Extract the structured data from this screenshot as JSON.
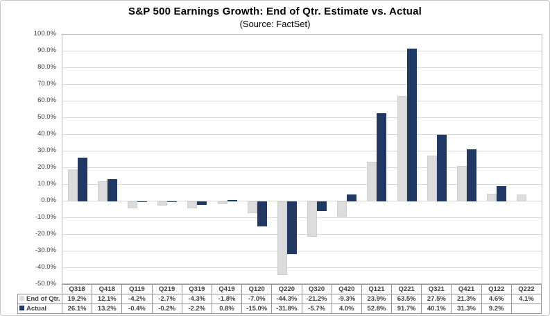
{
  "title": "S&P 500 Earnings Growth: End of Qtr. Estimate vs. Actual",
  "subtitle": "(Source: FactSet)",
  "colors": {
    "estimate_bar": "#DCDCDC",
    "actual_bar": "#1F3864",
    "gridline": "#D6D6D6",
    "plot_border": "#BFBFBF",
    "table_border": "#949494",
    "table_text": "#404040",
    "axis_text": "#3B3B3B"
  },
  "chart_data": {
    "type": "bar",
    "title": "S&P 500 Earnings Growth: End of Qtr. Estimate vs. Actual",
    "subtitle": "(Source: FactSet)",
    "categories": [
      "Q318",
      "Q418",
      "Q119",
      "Q219",
      "Q319",
      "Q419",
      "Q120",
      "Q220",
      "Q320",
      "Q420",
      "Q121",
      "Q221",
      "Q321",
      "Q421",
      "Q122",
      "Q222"
    ],
    "series": [
      {
        "name": "End of Qtr.",
        "color": "#DCDCDC",
        "values": [
          19.2,
          12.1,
          -4.2,
          -2.7,
          -4.3,
          -1.8,
          -7.0,
          -44.3,
          -21.2,
          -9.3,
          23.9,
          63.5,
          27.5,
          21.3,
          4.6,
          4.1
        ]
      },
      {
        "name": "Actual",
        "color": "#1F3864",
        "values": [
          26.1,
          13.2,
          -0.4,
          -0.2,
          -2.2,
          0.8,
          -15.0,
          -31.8,
          -5.7,
          4.0,
          52.8,
          91.7,
          40.1,
          31.3,
          9.2,
          null
        ]
      }
    ],
    "xlabel": "",
    "ylabel": "",
    "ylim": [
      -50,
      100
    ],
    "ytick_step": 10,
    "ytick_labels": [
      "100.0%",
      "90.0%",
      "80.0%",
      "70.0%",
      "60.0%",
      "50.0%",
      "40.0%",
      "30.0%",
      "20.0%",
      "10.0%",
      "0.0%",
      "-10.0%",
      "-20.0%",
      "-30.0%",
      "-40.0%",
      "-50.0%"
    ],
    "grid": true,
    "legend_position": "table-left"
  },
  "table": {
    "columns": [
      "Q318",
      "Q418",
      "Q119",
      "Q219",
      "Q319",
      "Q419",
      "Q120",
      "Q220",
      "Q320",
      "Q420",
      "Q121",
      "Q221",
      "Q321",
      "Q421",
      "Q122",
      "Q222"
    ],
    "rows": [
      {
        "label": "End of Qtr.",
        "swatch": "#DCDCDC",
        "values": [
          "19.2%",
          "12.1%",
          "-4.2%",
          "-2.7%",
          "-4.3%",
          "-1.8%",
          "-7.0%",
          "-44.3%",
          "-21.2%",
          "-9.3%",
          "23.9%",
          "63.5%",
          "27.5%",
          "21.3%",
          "4.6%",
          "4.1%"
        ]
      },
      {
        "label": "Actual",
        "swatch": "#1F3864",
        "values": [
          "26.1%",
          "13.2%",
          "-0.4%",
          "-0.2%",
          "-2.2%",
          "0.8%",
          "-15.0%",
          "-31.8%",
          "-5.7%",
          "4.0%",
          "52.8%",
          "91.7%",
          "40.1%",
          "31.3%",
          "9.2%",
          ""
        ]
      }
    ]
  }
}
